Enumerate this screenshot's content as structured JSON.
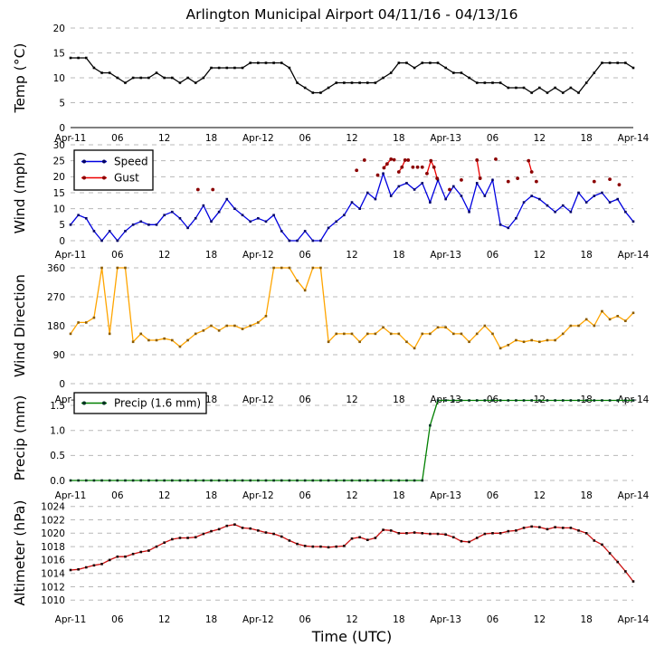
{
  "title": "Arlington Municipal Airport 04/11/16 - 04/13/16",
  "xlabel": "Time (UTC)",
  "x_axis": {
    "tick_hours": [
      0,
      6,
      12,
      18,
      24,
      30,
      36,
      42,
      48,
      54,
      60,
      66,
      72
    ],
    "tick_labels": [
      "Apr-11",
      "06",
      "12",
      "18",
      "Apr-12",
      "06",
      "12",
      "18",
      "Apr-13",
      "06",
      "12",
      "18",
      "Apr-14"
    ]
  },
  "grid_color": "#b8b8b8",
  "chart_data": [
    {
      "id": "temperature",
      "type": "line",
      "ylabel": "Temp (°C)",
      "ylim": [
        0,
        20
      ],
      "yticks": [
        0,
        5,
        10,
        15,
        20
      ],
      "ytick_labels": [
        "0",
        "5",
        "10",
        "15",
        "20"
      ],
      "solid_zero_line": true,
      "series": [
        {
          "name": "Temp",
          "color": "#000000",
          "marker_color": "#000000",
          "values": [
            14,
            14,
            14,
            12,
            11,
            11,
            10,
            9,
            10,
            10,
            10,
            11,
            10,
            10,
            9,
            10,
            9,
            10,
            12,
            12,
            12,
            12,
            12,
            13,
            13,
            13,
            13,
            13,
            12,
            9,
            8,
            7,
            7,
            8,
            9,
            9,
            9,
            9,
            9,
            9,
            10,
            11,
            13,
            13,
            12,
            13,
            13,
            13,
            12,
            11,
            11,
            10,
            9,
            9,
            9,
            9,
            8,
            8,
            8,
            7,
            8,
            7,
            8,
            7,
            8,
            7,
            9,
            11,
            13,
            13,
            13,
            13,
            12
          ]
        }
      ]
    },
    {
      "id": "wind",
      "type": "line+scatter",
      "ylabel": "Wind (mph)",
      "ylim": [
        0,
        30
      ],
      "yticks": [
        0,
        5,
        10,
        15,
        20,
        25,
        30
      ],
      "ytick_labels": [
        "0",
        "5",
        "10",
        "15",
        "20",
        "25",
        "30"
      ],
      "legend": {
        "labels": [
          "Speed",
          "Gust"
        ],
        "position": "upper-left"
      },
      "series": [
        {
          "name": "Speed",
          "color": "#0000e0",
          "marker_color": "#000066",
          "values": [
            5,
            8,
            7,
            3,
            0,
            3,
            0,
            3,
            5,
            6,
            5,
            5,
            8,
            9,
            7,
            4,
            7,
            11,
            6,
            9,
            13,
            10,
            8,
            6,
            7,
            6,
            8,
            3,
            0,
            0,
            3,
            0,
            0,
            4,
            6,
            8,
            12,
            10,
            15,
            13,
            21,
            14,
            17,
            18,
            16,
            18,
            12,
            19,
            13,
            17,
            14,
            9,
            18,
            14,
            19,
            5,
            4,
            7,
            12,
            14,
            13,
            11,
            9,
            11,
            9,
            15,
            12,
            14,
            15,
            12,
            13,
            9,
            6
          ]
        },
        {
          "name": "Gust",
          "type": "scatter",
          "color": "#ee0000",
          "marker_color": "#8b0000",
          "points": [
            [
              16.3,
              16
            ],
            [
              18.2,
              16
            ],
            [
              36.6,
              22
            ],
            [
              37.6,
              25.2
            ],
            [
              39.3,
              20.5
            ],
            [
              40.1,
              22.8
            ],
            [
              40.5,
              24
            ],
            [
              41,
              25.5
            ],
            [
              41.4,
              25.3
            ],
            [
              42,
              21.5
            ],
            [
              42.4,
              23
            ],
            [
              42.8,
              25.2
            ],
            [
              43.2,
              25.2
            ],
            [
              43.8,
              23
            ],
            [
              44.4,
              23
            ],
            [
              45,
              23
            ],
            [
              45.6,
              21
            ],
            [
              46.1,
              25
            ],
            [
              46.5,
              23
            ],
            [
              46.9,
              19.5
            ],
            [
              48.5,
              16
            ],
            [
              50,
              19
            ],
            [
              52,
              25.2
            ],
            [
              52.4,
              19.5
            ],
            [
              54.4,
              25.5
            ],
            [
              56,
              18.5
            ],
            [
              57.2,
              19.5
            ],
            [
              58.6,
              25
            ],
            [
              59,
              21.5
            ],
            [
              59.6,
              18.5
            ],
            [
              67,
              18.5
            ],
            [
              69,
              19.2
            ],
            [
              70.2,
              17.5
            ]
          ]
        }
      ]
    },
    {
      "id": "wind-direction",
      "type": "line",
      "ylabel": "Wind Direction",
      "ylim": [
        0,
        360
      ],
      "yticks": [
        0,
        90,
        180,
        270,
        360
      ],
      "ytick_labels": [
        "0",
        "90",
        "180",
        "270",
        "360"
      ],
      "series": [
        {
          "name": "Direction",
          "color": "#ffa500",
          "marker_color": "#8a5a00",
          "values": [
            155,
            190,
            190,
            205,
            360,
            155,
            360,
            360,
            130,
            155,
            135,
            135,
            140,
            135,
            115,
            135,
            155,
            165,
            180,
            165,
            180,
            180,
            170,
            180,
            190,
            210,
            360,
            360,
            360,
            320,
            290,
            360,
            360,
            130,
            155,
            155,
            155,
            130,
            155,
            155,
            175,
            155,
            155,
            130,
            110,
            155,
            155,
            175,
            175,
            155,
            155,
            130,
            155,
            180,
            155,
            110,
            120,
            135,
            130,
            135,
            130,
            135,
            135,
            155,
            180,
            180,
            200,
            180,
            225,
            200,
            210,
            195,
            220
          ]
        }
      ]
    },
    {
      "id": "precipitation",
      "type": "line",
      "ylabel": "Precip (mm)",
      "ylim": [
        0,
        1.7
      ],
      "yticks": [
        0,
        0.5,
        1.0,
        1.5
      ],
      "ytick_labels": [
        "0.0",
        "0.5",
        "1.0",
        "1.5"
      ],
      "legend": {
        "labels": [
          "Precip (1.6 mm)"
        ],
        "position": "upper-left"
      },
      "total_precip_mm": 1.6,
      "series": [
        {
          "name": "Precip",
          "color": "#008000",
          "marker_color": "#013220",
          "values": [
            0,
            0,
            0,
            0,
            0,
            0,
            0,
            0,
            0,
            0,
            0,
            0,
            0,
            0,
            0,
            0,
            0,
            0,
            0,
            0,
            0,
            0,
            0,
            0,
            0,
            0,
            0,
            0,
            0,
            0,
            0,
            0,
            0,
            0,
            0,
            0,
            0,
            0,
            0,
            0,
            0,
            0,
            0,
            0,
            0,
            0,
            1.1,
            1.6,
            1.6,
            1.6,
            1.6,
            1.6,
            1.6,
            1.6,
            1.6,
            1.6,
            1.6,
            1.6,
            1.6,
            1.6,
            1.6,
            1.6,
            1.6,
            1.6,
            1.6,
            1.6,
            1.6,
            1.6,
            1.6,
            1.6,
            1.6,
            1.6,
            1.6
          ]
        }
      ]
    },
    {
      "id": "altimeter",
      "type": "line",
      "ylabel": "Altimeter (hPa)",
      "ylim": [
        1009.5,
        1024.5
      ],
      "yticks": [
        1010,
        1012,
        1014,
        1016,
        1018,
        1020,
        1022,
        1024
      ],
      "ytick_labels": [
        "1010",
        "1012",
        "1014",
        "1016",
        "1018",
        "1020",
        "1022",
        "1024"
      ],
      "series": [
        {
          "name": "Altimeter",
          "color": "#cc1111",
          "marker_color": "#190000",
          "values": [
            1014.5,
            1014.6,
            1014.9,
            1015.2,
            1015.4,
            1016.0,
            1016.5,
            1016.5,
            1016.9,
            1017.2,
            1017.4,
            1018.0,
            1018.6,
            1019.1,
            1019.3,
            1019.3,
            1019.4,
            1019.9,
            1020.3,
            1020.6,
            1021.1,
            1021.3,
            1020.8,
            1020.7,
            1020.4,
            1020.1,
            1019.9,
            1019.5,
            1018.9,
            1018.4,
            1018.1,
            1018.0,
            1018.0,
            1017.9,
            1018.0,
            1018.1,
            1019.2,
            1019.4,
            1019.0,
            1019.3,
            1020.5,
            1020.4,
            1020.0,
            1020.0,
            1020.1,
            1020.0,
            1019.9,
            1019.9,
            1019.8,
            1019.4,
            1018.8,
            1018.7,
            1019.3,
            1019.9,
            1020.0,
            1020.0,
            1020.3,
            1020.4,
            1020.8,
            1021.0,
            1020.9,
            1020.6,
            1020.9,
            1020.8,
            1020.8,
            1020.4,
            1020.0,
            1018.9,
            1018.3,
            1017.0,
            1015.7,
            1014.3,
            1012.8
          ]
        }
      ]
    }
  ]
}
